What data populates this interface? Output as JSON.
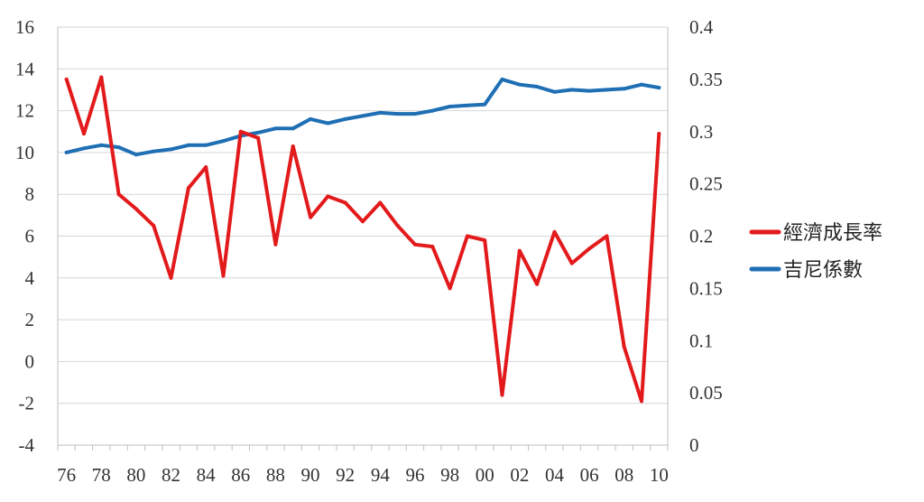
{
  "chart_data": {
    "type": "line",
    "x": [
      "76",
      "77",
      "78",
      "79",
      "80",
      "81",
      "82",
      "83",
      "84",
      "85",
      "86",
      "87",
      "88",
      "89",
      "90",
      "91",
      "92",
      "93",
      "94",
      "95",
      "96",
      "97",
      "98",
      "99",
      "00",
      "01",
      "02",
      "03",
      "04",
      "05",
      "06",
      "07",
      "08",
      "09",
      "10"
    ],
    "x_tick_labels": [
      "76",
      "78",
      "80",
      "82",
      "84",
      "86",
      "88",
      "90",
      "92",
      "94",
      "96",
      "98",
      "00",
      "02",
      "04",
      "06",
      "08",
      "10"
    ],
    "y_left": {
      "range": [
        -4,
        16
      ],
      "ticks": [
        "-4",
        "-2",
        "0",
        "2",
        "4",
        "6",
        "8",
        "10",
        "12",
        "14",
        "16"
      ]
    },
    "y_right": {
      "range": [
        0,
        0.4
      ],
      "ticks": [
        "0",
        "0.05",
        "0.1",
        "0.15",
        "0.2",
        "0.25",
        "0.3",
        "0.35",
        "0.4"
      ]
    },
    "grid": "horizontal",
    "legend_position": "right",
    "series": [
      {
        "name": "經濟成長率",
        "axis": "left",
        "color": "#e31a1c",
        "values": [
          13.5,
          10.9,
          13.6,
          8.0,
          7.3,
          6.5,
          4.0,
          8.3,
          9.3,
          4.1,
          11.0,
          10.7,
          5.6,
          10.3,
          6.9,
          7.9,
          7.6,
          6.7,
          7.6,
          6.5,
          5.6,
          5.5,
          3.5,
          6.0,
          5.8,
          -1.6,
          5.3,
          3.7,
          6.2,
          4.7,
          5.4,
          6.0,
          0.7,
          -1.9,
          10.9
        ]
      },
      {
        "name": "吉尼係數",
        "axis": "right",
        "color": "#1f6fb4",
        "values": [
          0.28,
          0.284,
          0.287,
          0.285,
          0.278,
          0.281,
          0.283,
          0.287,
          0.287,
          0.291,
          0.296,
          0.299,
          0.303,
          0.303,
          0.312,
          0.308,
          0.312,
          0.315,
          0.318,
          0.317,
          0.317,
          0.32,
          0.324,
          0.325,
          0.326,
          0.35,
          0.345,
          0.343,
          0.338,
          0.34,
          0.339,
          0.34,
          0.341,
          0.345,
          0.342
        ]
      }
    ]
  }
}
